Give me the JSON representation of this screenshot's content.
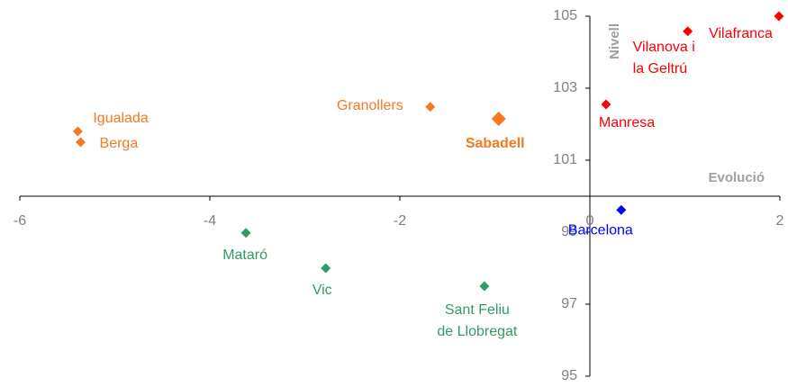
{
  "chart_data": {
    "type": "scatter",
    "x_label": "Evolució",
    "y_label": "Nivell",
    "labels": [
      "Igualada",
      "Berga",
      "Granollers",
      "Sabadell",
      "Manresa",
      "Vilanova i\nla Geltrú",
      "Vilafranca",
      "Barcelona",
      "Mataró",
      "Vic",
      "Sant Feliu\nde Llobregat"
    ],
    "x": [
      -5.39,
      -5.36,
      -1.68,
      -0.96,
      0.17,
      1.03,
      1.99,
      0.33,
      -3.62,
      -2.78,
      -1.11
    ],
    "values": [
      101.8,
      101.5,
      102.48,
      102.15,
      102.55,
      104.58,
      105,
      99.62,
      98.98,
      98.0,
      97.5
    ],
    "colors": [
      "#f47920",
      "#f47920",
      "#f47920",
      "#f47920",
      "#ff0000",
      "#ff0000",
      "#ff0000",
      "#0000ff",
      "#339966",
      "#339966",
      "#339966"
    ],
    "emphasized": [
      false,
      false,
      false,
      true,
      false,
      false,
      false,
      false,
      false,
      false,
      false
    ],
    "xlim": [
      -6,
      2
    ],
    "xticks": [
      -6,
      -4,
      -2,
      0,
      2
    ],
    "ylim": [
      95,
      105
    ],
    "yticks": [
      95,
      97,
      99,
      101,
      103,
      105
    ]
  }
}
